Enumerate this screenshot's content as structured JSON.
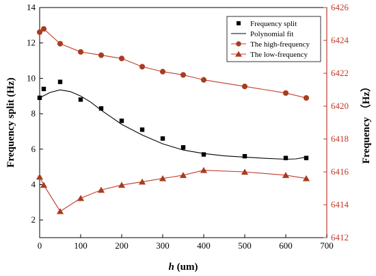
{
  "chart_data": {
    "type": "line",
    "xlabel": "h (um)",
    "xlabel_italic": "h",
    "xlabel_rest": " (um)",
    "ylabel_left": "Frequency split (Hz)",
    "ylabel_right": "Frequency （Hz）",
    "xlim": [
      0,
      700
    ],
    "ylim_left": [
      1,
      14
    ],
    "ylim_right": [
      6412,
      6426
    ],
    "x_ticks": [
      "0",
      "100",
      "200",
      "300",
      "400",
      "500",
      "600",
      "700"
    ],
    "y_ticks_left": [
      "2",
      "4",
      "6",
      "8",
      "10",
      "12",
      "14"
    ],
    "y_ticks_right": [
      "6412",
      "6414",
      "6416",
      "6418",
      "6420",
      "6422",
      "6424",
      "6426"
    ],
    "legend_position": "top-right",
    "colors": {
      "left_axis": "#000000",
      "right_axis": "#c0392b",
      "high_fill": "#a0401c",
      "low_fill": "#a0401c"
    },
    "series": [
      {
        "name": "Frequency split",
        "axis": "left",
        "marker": "square",
        "x": [
          0,
          10,
          50,
          100,
          150,
          200,
          250,
          300,
          350,
          400,
          500,
          600,
          650
        ],
        "values": [
          8.9,
          9.4,
          9.8,
          8.8,
          8.3,
          7.6,
          7.1,
          6.6,
          6.1,
          5.7,
          5.6,
          5.5,
          5.5
        ]
      },
      {
        "name": "Polynomial fit",
        "axis": "left",
        "marker": "none",
        "x": [
          0,
          25,
          50,
          75,
          100,
          125,
          150,
          175,
          200,
          250,
          300,
          350,
          400,
          450,
          500,
          550,
          600,
          625,
          650
        ],
        "values": [
          8.9,
          9.2,
          9.35,
          9.25,
          9.0,
          8.65,
          8.2,
          7.8,
          7.4,
          6.8,
          6.3,
          5.95,
          5.75,
          5.62,
          5.55,
          5.48,
          5.43,
          5.45,
          5.55
        ]
      },
      {
        "name": "The high-frequency",
        "axis": "right",
        "marker": "circle",
        "x": [
          0,
          10,
          50,
          100,
          150,
          200,
          250,
          300,
          350,
          400,
          500,
          600,
          650
        ],
        "values": [
          6424.5,
          6424.7,
          6423.8,
          6423.3,
          6423.1,
          6422.9,
          6422.4,
          6422.1,
          6421.9,
          6421.6,
          6421.2,
          6420.8,
          6420.5
        ]
      },
      {
        "name": "The low-frequency",
        "axis": "right",
        "marker": "triangle",
        "x": [
          0,
          10,
          50,
          100,
          150,
          200,
          250,
          300,
          350,
          400,
          500,
          600,
          650
        ],
        "values": [
          6415.7,
          6415.2,
          6413.6,
          6414.4,
          6414.9,
          6415.2,
          6415.4,
          6415.6,
          6415.8,
          6416.1,
          6416.0,
          6415.8,
          6415.6
        ]
      }
    ]
  }
}
